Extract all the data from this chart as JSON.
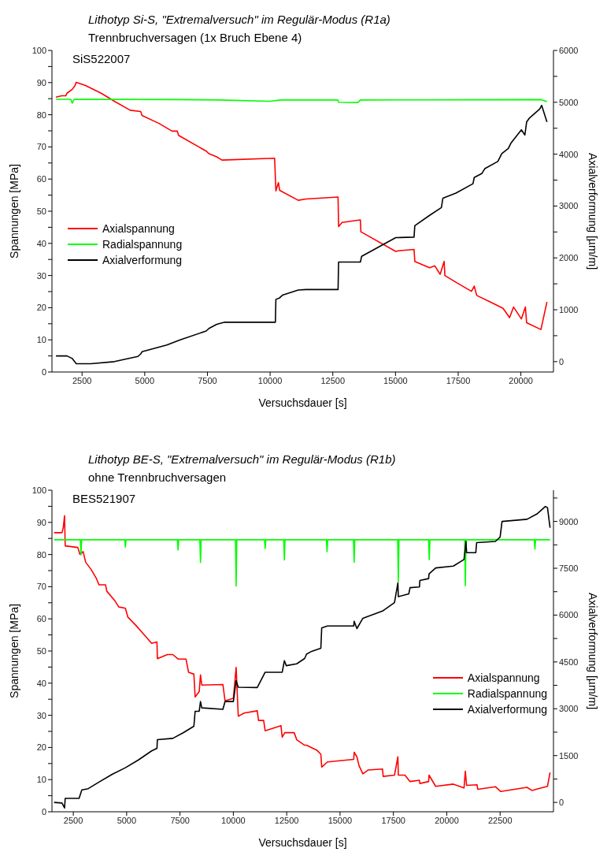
{
  "chart_data": [
    {
      "type": "line",
      "title": "Lithotyp Si-S, \"Extremalversuch\" im Regulär-Modus (R1a)",
      "subtitle": "Trennbruchversagen (1x Bruch Ebene 4)",
      "annotations": [
        "SiS522007"
      ],
      "xlabel": "Versuchsdauer [s]",
      "ylabel": "Spannungen [MPa]",
      "y2label": "Axialverformung [µm/m]",
      "legend": "left",
      "xlim": [
        1300,
        21300
      ],
      "xticks": [
        2500,
        5000,
        7500,
        10000,
        12500,
        15000,
        17500,
        20000
      ],
      "ylim": [
        0,
        100
      ],
      "yticks": [
        0,
        {
          "value": 5,
          "label": null
        },
        10,
        {
          "value": 15,
          "label": null
        },
        20,
        {
          "value": 25,
          "label": null
        },
        30,
        {
          "value": 35,
          "label": null
        },
        40,
        {
          "value": 45,
          "label": null
        },
        50,
        {
          "value": 55,
          "label": null
        },
        60,
        {
          "value": 65,
          "label": null
        },
        70,
        {
          "value": 75,
          "label": null
        },
        80,
        {
          "value": 85,
          "label": null
        },
        90,
        {
          "value": 95,
          "label": null
        },
        100
      ],
      "y2lim": [
        -200,
        6000
      ],
      "y2ticks": [
        0,
        {
          "value": 500,
          "label": null
        },
        1000,
        {
          "value": 1500,
          "label": null
        },
        2000,
        {
          "value": 2500,
          "label": null
        },
        3000,
        {
          "value": 3500,
          "label": null
        },
        4000,
        {
          "value": 4500,
          "label": null
        },
        5000,
        {
          "value": 5500,
          "label": null
        },
        6000
      ],
      "series": [
        {
          "name": "Axialspannung",
          "color": "#ff0000",
          "x": [
            1460,
            1690,
            1850,
            1900,
            2110,
            2220,
            2270,
            2640,
            3260,
            3790,
            4420,
            4840,
            4890,
            5570,
            6090,
            6300,
            6350,
            7450,
            7560,
            7870,
            8080,
            10180,
            10230,
            10330,
            10380,
            11120,
            11430,
            12710,
            12730,
            12870,
            13600,
            13620,
            15010,
            15110,
            15740,
            15770,
            16360,
            16570,
            16780,
            16940,
            16970,
            17410,
            18030,
            18140,
            18240,
            18770,
            19290,
            19550,
            19710,
            20020,
            20180,
            20230,
            20800,
            21040
          ],
          "values": [
            85.5,
            85.9,
            85.9,
            86.7,
            87.9,
            89.1,
            90.1,
            89.1,
            86.7,
            84.2,
            81.4,
            81.0,
            79.8,
            77.3,
            74.9,
            74.9,
            73.6,
            68.7,
            67.9,
            66.9,
            65.9,
            66.5,
            56.3,
            58.9,
            56.5,
            53.4,
            53.8,
            54.4,
            45.2,
            46.5,
            47.3,
            43.6,
            37.5,
            37.7,
            38.1,
            34.4,
            32.4,
            33.0,
            30.4,
            34.4,
            30.0,
            27.9,
            25.1,
            26.7,
            23.8,
            21.8,
            19.8,
            16.9,
            20.2,
            16.5,
            20.2,
            15.3,
            13.2,
            21.8
          ]
        },
        {
          "name": "Radialspannung",
          "color": "#00ff00",
          "x": [
            1460,
            2050,
            2110,
            2180,
            6300,
            8000,
            10000,
            10400,
            12700,
            12730,
            13500,
            13600,
            20800,
            21040
          ],
          "values": [
            84.8,
            84.8,
            83.6,
            84.8,
            84.7,
            84.6,
            84.2,
            84.6,
            84.6,
            83.9,
            83.8,
            84.6,
            84.7,
            84.1
          ]
        },
        {
          "name": "Axialverformung",
          "color": "#000000",
          "axis": "y2",
          "x": [
            1460,
            1900,
            2110,
            2270,
            2850,
            3790,
            4730,
            4840,
            4890,
            5880,
            6410,
            7450,
            7560,
            7870,
            8190,
            10210,
            10230,
            10380,
            10490,
            11120,
            11430,
            12710,
            12730,
            13600,
            13650,
            15010,
            15740,
            15770,
            16360,
            16830,
            16890,
            17410,
            18090,
            18140,
            18450,
            18560,
            19080,
            19240,
            19500,
            19600,
            20020,
            20160,
            20230,
            20330,
            20750,
            20830,
            21040
          ],
          "values": [
            110,
            110,
            60,
            -40,
            -40,
            0,
            100,
            150,
            190,
            320,
            420,
            590,
            640,
            720,
            760,
            760,
            1200,
            1230,
            1280,
            1380,
            1390,
            1390,
            1920,
            1920,
            2030,
            2390,
            2400,
            2620,
            2820,
            2970,
            3150,
            3250,
            3430,
            3550,
            3630,
            3720,
            3860,
            4010,
            4110,
            4210,
            4470,
            4370,
            4620,
            4690,
            4870,
            4940,
            4620
          ]
        }
      ]
    },
    {
      "type": "line",
      "title": "Lithotyp BE-S, \"Extremalversuch\" im Regulär-Modus (R1b)",
      "subtitle": "ohne Trennbruchversagen",
      "annotations": [
        "BES521907"
      ],
      "xlabel": "Versuchsdauer [s]",
      "ylabel": "Spannungen [MPa]",
      "y2label": "Axialverformung [µm/m]",
      "legend": "bottom right",
      "xlim": [
        1500,
        25000
      ],
      "xticks": [
        2500,
        5000,
        7500,
        10000,
        12500,
        15000,
        17500,
        20000,
        22500
      ],
      "ylim": [
        0,
        100
      ],
      "yticks": [
        0,
        {
          "value": 5,
          "label": null
        },
        10,
        {
          "value": 15,
          "label": null
        },
        20,
        {
          "value": 25,
          "label": null
        },
        30,
        {
          "value": 35,
          "label": null
        },
        40,
        {
          "value": 45,
          "label": null
        },
        50,
        {
          "value": 55,
          "label": null
        },
        60,
        {
          "value": 65,
          "label": null
        },
        70,
        {
          "value": 75,
          "label": null
        },
        80,
        {
          "value": 85,
          "label": null
        },
        90,
        {
          "value": 95,
          "label": null
        },
        100
      ],
      "y2lim": [
        -300,
        10000
      ],
      "y2ticks": [
        0,
        {
          "value": 750,
          "label": null
        },
        1500,
        {
          "value": 2250,
          "label": null
        },
        3000,
        {
          "value": 3750,
          "label": null
        },
        4500,
        {
          "value": 5250,
          "label": null
        },
        6000,
        {
          "value": 6750,
          "label": null
        },
        7500,
        {
          "value": 8250,
          "label": null
        },
        9000,
        {
          "value": 9750,
          "label": null
        }
      ],
      "series": [
        {
          "name": "Axialspannung",
          "color": "#ff0000",
          "x": [
            1600,
            1970,
            2030,
            2090,
            2120,
            2710,
            2810,
            2960,
            3080,
            3330,
            3580,
            3700,
            4010,
            4070,
            4440,
            4630,
            4940,
            5060,
            5430,
            5800,
            6170,
            6420,
            6440,
            6910,
            7160,
            7410,
            7780,
            7900,
            8150,
            8210,
            8400,
            8460,
            8520,
            9510,
            9610,
            10000,
            10130,
            10230,
            10500,
            11120,
            11180,
            11420,
            11490,
            12230,
            12290,
            12410,
            12850,
            12970,
            13340,
            13430,
            13670,
            13920,
            14100,
            14140,
            14410,
            15640,
            15660,
            15790,
            15890,
            16070,
            16320,
            16990,
            17020,
            17550,
            17710,
            17730,
            18040,
            18280,
            18720,
            18740,
            19150,
            19170,
            19480,
            20310,
            20810,
            20870,
            20930,
            21420,
            21450,
            22280,
            22530,
            23760,
            24000,
            24250,
            24720,
            24840
          ],
          "values": [
            86.8,
            86.8,
            88.4,
            92.1,
            82.7,
            82.2,
            80.1,
            80.9,
            77.6,
            75.4,
            72.6,
            70.6,
            70.6,
            68.6,
            65.7,
            63.7,
            63.3,
            60.5,
            58.0,
            55.2,
            52.4,
            52.8,
            47.6,
            48.9,
            48.9,
            47.5,
            47.5,
            43.4,
            42.8,
            35.7,
            37.4,
            42.6,
            39.4,
            39.6,
            34.5,
            35.3,
            44.9,
            29.7,
            30.7,
            31.4,
            28.4,
            28.4,
            25.2,
            26.8,
            23.2,
            24.6,
            24.6,
            22.4,
            20.7,
            20.7,
            19.9,
            19.1,
            17.9,
            13.9,
            15.5,
            16.3,
            18.5,
            17.1,
            14.3,
            11.8,
            13.0,
            13.3,
            11.0,
            11.4,
            17.1,
            11.4,
            11.4,
            9.4,
            9.8,
            8.8,
            9.4,
            11.4,
            7.9,
            8.6,
            7.4,
            12.6,
            8.2,
            8.4,
            7.0,
            7.8,
            6.3,
            7.6,
            6.6,
            7.1,
            7.9,
            12.2
          ]
        },
        {
          "name": "Radialspannung",
          "color": "#00ff00",
          "x": [
            1600,
            2830,
            2860,
            2890,
            4910,
            4940,
            4970,
            7380,
            7410,
            7440,
            8430,
            8460,
            8490,
            10100,
            10130,
            10160,
            11460,
            11490,
            11520,
            12360,
            12390,
            12420,
            14360,
            14390,
            14420,
            15630,
            15660,
            15690,
            17700,
            17730,
            17760,
            19150,
            19180,
            19210,
            20840,
            20870,
            20900,
            24100,
            24130,
            24160,
            24840
          ],
          "values": [
            84.6,
            84.6,
            79.9,
            84.6,
            84.6,
            82.3,
            84.6,
            84.6,
            81.4,
            84.6,
            84.6,
            77.5,
            84.6,
            84.6,
            70.2,
            84.6,
            84.6,
            81.9,
            84.6,
            84.6,
            78.3,
            84.6,
            84.6,
            80.9,
            84.6,
            84.6,
            77.6,
            84.6,
            84.6,
            71.6,
            84.6,
            84.6,
            78.4,
            84.6,
            84.6,
            70.3,
            84.6,
            84.6,
            81.7,
            84.6,
            84.6
          ]
        },
        {
          "name": "Axialverformung",
          "color": "#000000",
          "axis": "y2",
          "x": [
            1600,
            1970,
            2090,
            2120,
            2770,
            2900,
            3200,
            3700,
            4320,
            4940,
            5550,
            6170,
            6420,
            6440,
            7160,
            7650,
            8150,
            8210,
            8400,
            8460,
            8520,
            9510,
            9610,
            10000,
            10130,
            10230,
            11120,
            11490,
            12290,
            12390,
            12480,
            12970,
            13340,
            13430,
            13670,
            14100,
            14140,
            14410,
            15640,
            15660,
            15790,
            16070,
            16990,
            17550,
            17710,
            17730,
            18220,
            18280,
            18720,
            18740,
            19150,
            19170,
            19480,
            20310,
            20810,
            20900,
            20930,
            21360,
            21400,
            22280,
            22500,
            22590,
            23760,
            24250,
            24620,
            24720,
            24840
          ],
          "values": [
            0,
            -20,
            -180,
            130,
            130,
            400,
            440,
            650,
            900,
            1110,
            1360,
            1650,
            1730,
            2010,
            2050,
            2230,
            2440,
            2920,
            2920,
            3230,
            3030,
            2980,
            3230,
            3230,
            3900,
            3690,
            3680,
            4170,
            4170,
            4540,
            4380,
            4440,
            4610,
            4750,
            4840,
            4940,
            5590,
            5650,
            5650,
            5800,
            5570,
            5900,
            6130,
            6400,
            7030,
            6590,
            6680,
            6880,
            6900,
            7110,
            7170,
            7320,
            7510,
            7570,
            7780,
            8360,
            8000,
            8000,
            8320,
            8360,
            8500,
            9000,
            9070,
            9250,
            9480,
            9440,
            8800
          ]
        }
      ]
    }
  ]
}
